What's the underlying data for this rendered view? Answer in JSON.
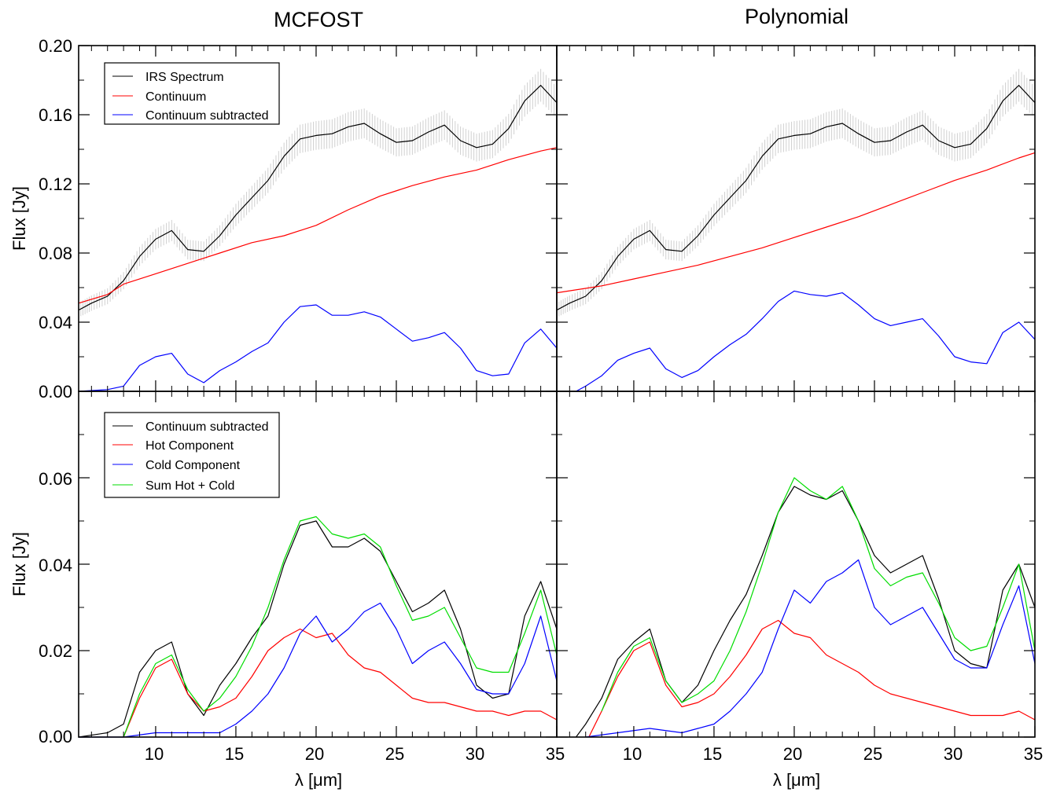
{
  "titles": {
    "left": "MCFOST",
    "right": "Polynomial"
  },
  "labels": {
    "y_top": "Flux [Jy]",
    "y_bottom": "Flux [Jy]",
    "x_left": "λ [μm]",
    "x_right": "λ [μm]"
  },
  "ticks": {
    "x": [
      "10",
      "15",
      "20",
      "25",
      "30",
      "35"
    ],
    "y_top": [
      "0.20",
      "0.16",
      "0.12",
      "0.08",
      "0.04",
      "0.00"
    ],
    "y_bottom": [
      "0.06",
      "0.04",
      "0.02",
      "0.00"
    ]
  },
  "legends": {
    "top": [
      "IRS Spectrum",
      "Continuum",
      "Continuum subtracted"
    ],
    "bottom": [
      "Continuum subtracted",
      "Hot Component",
      "Cold Component",
      "Sum Hot + Cold"
    ]
  },
  "colors": {
    "spectrum": "#000000",
    "continuum": "#ff0000",
    "subtracted": "#0000ff",
    "hot": "#ff0000",
    "cold": "#0000ff",
    "sum": "#00dd00",
    "errorbars": "#d0d0d0"
  },
  "chart_data": [
    {
      "type": "line",
      "title": "MCFOST",
      "xlabel": "λ [μm]",
      "ylabel": "Flux [Jy]",
      "xlim": [
        5.2,
        35
      ],
      "ylim": [
        0,
        0.2
      ],
      "legend": "top-left",
      "series": [
        {
          "name": "IRS Spectrum",
          "color": "#000000",
          "x": [
            5.2,
            6,
            7,
            8,
            9,
            10,
            11,
            12,
            13,
            14,
            15,
            16,
            17,
            18,
            19,
            20,
            21,
            22,
            23,
            24,
            25,
            26,
            27,
            28,
            29,
            30,
            31,
            32,
            33,
            34,
            35
          ],
          "y": [
            0.047,
            0.051,
            0.055,
            0.064,
            0.078,
            0.088,
            0.093,
            0.082,
            0.081,
            0.09,
            0.102,
            0.112,
            0.122,
            0.136,
            0.146,
            0.148,
            0.149,
            0.153,
            0.155,
            0.149,
            0.144,
            0.145,
            0.15,
            0.154,
            0.145,
            0.141,
            0.143,
            0.152,
            0.168,
            0.177,
            0.167
          ]
        },
        {
          "name": "Continuum",
          "color": "#ff0000",
          "x": [
            5.2,
            7,
            8,
            10,
            12,
            14,
            16,
            18,
            20,
            22,
            24,
            26,
            28,
            30,
            32,
            34,
            35
          ],
          "y": [
            0.051,
            0.056,
            0.062,
            0.068,
            0.074,
            0.08,
            0.086,
            0.09,
            0.096,
            0.105,
            0.113,
            0.119,
            0.124,
            0.128,
            0.134,
            0.139,
            0.141
          ]
        },
        {
          "name": "Continuum subtracted",
          "color": "#0000ff",
          "x": [
            5.2,
            7,
            8,
            9,
            10,
            11,
            12,
            13,
            14,
            15,
            16,
            17,
            18,
            19,
            20,
            21,
            22,
            23,
            24,
            25,
            26,
            27,
            28,
            29,
            30,
            31,
            32,
            33,
            34,
            35
          ],
          "y": [
            0.0,
            0.001,
            0.003,
            0.015,
            0.02,
            0.022,
            0.01,
            0.005,
            0.012,
            0.017,
            0.023,
            0.028,
            0.04,
            0.049,
            0.05,
            0.044,
            0.044,
            0.046,
            0.043,
            0.036,
            0.029,
            0.031,
            0.034,
            0.025,
            0.012,
            0.009,
            0.01,
            0.028,
            0.036,
            0.025
          ]
        }
      ]
    },
    {
      "type": "line",
      "title": "Polynomial",
      "xlabel": "λ [μm]",
      "ylabel": "Flux [Jy]",
      "xlim": [
        5.2,
        35
      ],
      "ylim": [
        0,
        0.2
      ],
      "series": [
        {
          "name": "IRS Spectrum",
          "color": "#000000",
          "x": [
            5.2,
            6,
            7,
            8,
            9,
            10,
            11,
            12,
            13,
            14,
            15,
            16,
            17,
            18,
            19,
            20,
            21,
            22,
            23,
            24,
            25,
            26,
            27,
            28,
            29,
            30,
            31,
            32,
            33,
            34,
            35
          ],
          "y": [
            0.047,
            0.051,
            0.055,
            0.064,
            0.078,
            0.088,
            0.093,
            0.082,
            0.081,
            0.09,
            0.102,
            0.112,
            0.122,
            0.136,
            0.146,
            0.148,
            0.149,
            0.153,
            0.155,
            0.149,
            0.144,
            0.145,
            0.15,
            0.154,
            0.145,
            0.141,
            0.143,
            0.152,
            0.168,
            0.177,
            0.167
          ]
        },
        {
          "name": "Continuum",
          "color": "#ff0000",
          "x": [
            5.2,
            8,
            10,
            12,
            14,
            16,
            18,
            20,
            22,
            24,
            26,
            28,
            30,
            32,
            34,
            35
          ],
          "y": [
            0.057,
            0.061,
            0.065,
            0.069,
            0.073,
            0.078,
            0.083,
            0.089,
            0.095,
            0.101,
            0.108,
            0.115,
            0.122,
            0.128,
            0.135,
            0.138
          ]
        },
        {
          "name": "Continuum subtracted",
          "color": "#0000ff",
          "x": [
            6.4,
            7,
            8,
            9,
            10,
            11,
            12,
            13,
            14,
            15,
            16,
            17,
            18,
            19,
            20,
            21,
            22,
            23,
            24,
            25,
            26,
            27,
            28,
            29,
            30,
            31,
            32,
            33,
            34,
            35
          ],
          "y": [
            0.0,
            0.003,
            0.009,
            0.018,
            0.022,
            0.025,
            0.013,
            0.008,
            0.012,
            0.02,
            0.027,
            0.033,
            0.042,
            0.052,
            0.058,
            0.056,
            0.055,
            0.057,
            0.05,
            0.042,
            0.038,
            0.04,
            0.042,
            0.032,
            0.02,
            0.017,
            0.016,
            0.034,
            0.04,
            0.03
          ]
        }
      ]
    },
    {
      "type": "line",
      "xlabel": "λ [μm]",
      "ylabel": "Flux [Jy]",
      "xlim": [
        5.2,
        35
      ],
      "ylim": [
        0,
        0.08
      ],
      "legend": "top-left",
      "series": [
        {
          "name": "Continuum subtracted",
          "color": "#000000",
          "x": [
            5.2,
            7,
            8,
            9,
            10,
            11,
            12,
            13,
            14,
            15,
            16,
            17,
            18,
            19,
            20,
            21,
            22,
            23,
            24,
            25,
            26,
            27,
            28,
            29,
            30,
            31,
            32,
            33,
            34,
            35
          ],
          "y": [
            0.0,
            0.001,
            0.003,
            0.015,
            0.02,
            0.022,
            0.01,
            0.005,
            0.012,
            0.017,
            0.023,
            0.028,
            0.04,
            0.049,
            0.05,
            0.044,
            0.044,
            0.046,
            0.043,
            0.036,
            0.029,
            0.031,
            0.034,
            0.025,
            0.012,
            0.009,
            0.01,
            0.028,
            0.036,
            0.025
          ]
        },
        {
          "name": "Hot Component",
          "color": "#ff0000",
          "x": [
            8,
            9,
            10,
            11,
            12,
            13,
            14,
            15,
            16,
            17,
            18,
            19,
            20,
            21,
            22,
            23,
            24,
            25,
            26,
            27,
            28,
            29,
            30,
            31,
            32,
            33,
            34,
            35
          ],
          "y": [
            0.0,
            0.009,
            0.016,
            0.018,
            0.01,
            0.006,
            0.007,
            0.009,
            0.014,
            0.02,
            0.023,
            0.025,
            0.023,
            0.024,
            0.019,
            0.016,
            0.015,
            0.012,
            0.009,
            0.008,
            0.008,
            0.007,
            0.006,
            0.006,
            0.005,
            0.006,
            0.006,
            0.004
          ]
        },
        {
          "name": "Cold Component",
          "color": "#0000ff",
          "x": [
            5.2,
            8,
            10,
            12,
            14,
            15,
            16,
            17,
            18,
            19,
            20,
            21,
            22,
            23,
            24,
            25,
            26,
            27,
            28,
            29,
            30,
            31,
            32,
            33,
            34,
            35
          ],
          "y": [
            0.0,
            0.0,
            0.001,
            0.001,
            0.001,
            0.003,
            0.006,
            0.01,
            0.016,
            0.024,
            0.028,
            0.022,
            0.025,
            0.029,
            0.031,
            0.025,
            0.017,
            0.02,
            0.022,
            0.017,
            0.011,
            0.01,
            0.01,
            0.017,
            0.028,
            0.013
          ]
        },
        {
          "name": "Sum Hot + Cold",
          "color": "#00dd00",
          "x": [
            8,
            9,
            10,
            11,
            12,
            13,
            14,
            15,
            16,
            17,
            18,
            19,
            20,
            21,
            22,
            23,
            24,
            25,
            26,
            27,
            28,
            29,
            30,
            31,
            32,
            33,
            34,
            35
          ],
          "y": [
            0.0,
            0.01,
            0.017,
            0.019,
            0.011,
            0.006,
            0.009,
            0.014,
            0.021,
            0.03,
            0.041,
            0.05,
            0.051,
            0.047,
            0.046,
            0.047,
            0.044,
            0.035,
            0.027,
            0.028,
            0.03,
            0.023,
            0.016,
            0.015,
            0.015,
            0.024,
            0.034,
            0.019
          ]
        }
      ]
    },
    {
      "type": "line",
      "xlabel": "λ [μm]",
      "ylabel": "Flux [Jy]",
      "xlim": [
        5.2,
        35
      ],
      "ylim": [
        0,
        0.08
      ],
      "series": [
        {
          "name": "Continuum subtracted",
          "color": "#000000",
          "x": [
            6.4,
            7,
            8,
            9,
            10,
            11,
            12,
            13,
            14,
            15,
            16,
            17,
            18,
            19,
            20,
            21,
            22,
            23,
            24,
            25,
            26,
            27,
            28,
            29,
            30,
            31,
            32,
            33,
            34,
            35
          ],
          "y": [
            0.0,
            0.003,
            0.009,
            0.018,
            0.022,
            0.025,
            0.013,
            0.008,
            0.012,
            0.02,
            0.027,
            0.033,
            0.042,
            0.052,
            0.058,
            0.056,
            0.055,
            0.057,
            0.05,
            0.042,
            0.038,
            0.04,
            0.042,
            0.032,
            0.02,
            0.017,
            0.016,
            0.034,
            0.04,
            0.03
          ]
        },
        {
          "name": "Hot Component",
          "color": "#ff0000",
          "x": [
            7.2,
            8,
            9,
            10,
            11,
            12,
            13,
            14,
            15,
            16,
            17,
            18,
            19,
            20,
            21,
            22,
            23,
            24,
            25,
            26,
            27,
            28,
            29,
            30,
            31,
            32,
            33,
            34,
            35
          ],
          "y": [
            0.0,
            0.006,
            0.014,
            0.02,
            0.022,
            0.012,
            0.007,
            0.008,
            0.01,
            0.014,
            0.019,
            0.025,
            0.027,
            0.024,
            0.023,
            0.019,
            0.017,
            0.015,
            0.012,
            0.01,
            0.009,
            0.008,
            0.007,
            0.006,
            0.005,
            0.005,
            0.005,
            0.006,
            0.004
          ]
        },
        {
          "name": "Cold Component",
          "color": "#0000ff",
          "x": [
            7,
            9,
            11,
            13,
            14,
            15,
            16,
            17,
            18,
            19,
            20,
            21,
            22,
            23,
            24,
            25,
            26,
            27,
            28,
            29,
            30,
            31,
            32,
            33,
            34,
            35
          ],
          "y": [
            0.0,
            0.001,
            0.002,
            0.001,
            0.002,
            0.003,
            0.006,
            0.01,
            0.015,
            0.025,
            0.034,
            0.031,
            0.036,
            0.038,
            0.041,
            0.03,
            0.026,
            0.028,
            0.03,
            0.024,
            0.018,
            0.016,
            0.016,
            0.026,
            0.035,
            0.017
          ]
        },
        {
          "name": "Sum Hot + Cold",
          "color": "#00dd00",
          "x": [
            8,
            9,
            10,
            11,
            12,
            13,
            14,
            15,
            16,
            17,
            18,
            19,
            20,
            21,
            22,
            23,
            24,
            25,
            26,
            27,
            28,
            29,
            30,
            31,
            32,
            33,
            34,
            35
          ],
          "y": [
            0.006,
            0.015,
            0.021,
            0.023,
            0.013,
            0.008,
            0.01,
            0.013,
            0.02,
            0.029,
            0.04,
            0.052,
            0.06,
            0.057,
            0.055,
            0.058,
            0.05,
            0.039,
            0.035,
            0.037,
            0.038,
            0.031,
            0.023,
            0.02,
            0.021,
            0.03,
            0.04,
            0.02
          ]
        }
      ]
    }
  ]
}
